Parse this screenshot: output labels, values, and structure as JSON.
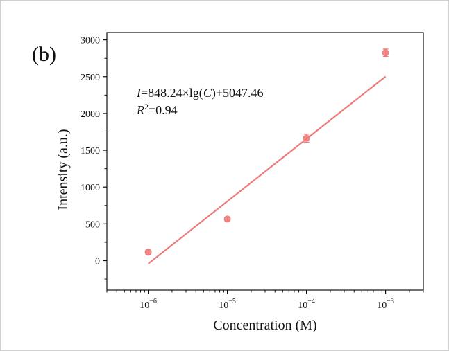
{
  "chart_data": {
    "type": "scatter",
    "panel_label": "(b)",
    "xlabel": "Concentration (M)",
    "ylabel": "Intensity (a.u.)",
    "x_scale": "log",
    "xlim": [
      3e-07,
      0.003
    ],
    "ylim": [
      -400,
      3100
    ],
    "x_ticks": [
      {
        "value": 1e-06,
        "base": "10",
        "exp": "−6"
      },
      {
        "value": 1e-05,
        "base": "10",
        "exp": "−5"
      },
      {
        "value": 0.0001,
        "base": "10",
        "exp": "−4"
      },
      {
        "value": 0.001,
        "base": "10",
        "exp": "−3"
      }
    ],
    "y_ticks": [
      0,
      500,
      1000,
      1500,
      2000,
      2500,
      3000
    ],
    "y_minor_ticks": [
      -250,
      250,
      750,
      1250,
      1750,
      2250,
      2750
    ],
    "points": [
      {
        "x": 1e-06,
        "y": 115,
        "err": 30
      },
      {
        "x": 1e-05,
        "y": 565,
        "err": 25
      },
      {
        "x": 0.0001,
        "y": 1665,
        "err": 55
      },
      {
        "x": 0.001,
        "y": 2825,
        "err": 50
      }
    ],
    "fit": {
      "slope": 848.24,
      "intercept": 5047.46,
      "x_range": [
        1e-06,
        0.001
      ],
      "equation": {
        "var": "I",
        "rest": "=848.24×lg(",
        "arg": "C",
        "close": ")+5047.46"
      },
      "r2": {
        "var": "R",
        "sup": "2",
        "value": "=0.94"
      }
    },
    "colors": {
      "marker": "#ee7b7b",
      "fit_line": "#ee7b7b",
      "axis": "#111111"
    },
    "grid": false,
    "legend": "none"
  }
}
